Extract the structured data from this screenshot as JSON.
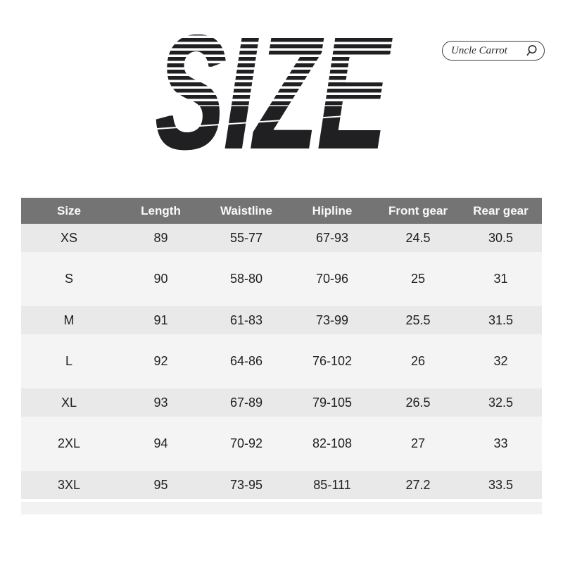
{
  "title": "SIZE",
  "brand": {
    "label": "Uncle Carrot",
    "icon": "search-icon"
  },
  "table": {
    "columns": [
      "Size",
      "Length",
      "Waistline",
      "Hipline",
      "Front gear",
      "Rear gear"
    ],
    "rows": [
      [
        "XS",
        "89",
        "55-77",
        "67-93",
        "24.5",
        "30.5"
      ],
      [
        "S",
        "90",
        "58-80",
        "70-96",
        "25",
        "31"
      ],
      [
        "M",
        "91",
        "61-83",
        "73-99",
        "25.5",
        "31.5"
      ],
      [
        "L",
        "92",
        "64-86",
        "76-102",
        "26",
        "32"
      ],
      [
        "XL",
        "93",
        "67-89",
        "79-105",
        "26.5",
        "32.5"
      ],
      [
        "2XL",
        "94",
        "70-92",
        "82-108",
        "27",
        "33"
      ],
      [
        "3XL",
        "95",
        "73-95",
        "85-111",
        "27.2",
        "33.5"
      ]
    ]
  },
  "colors": {
    "header_bg": "#747474",
    "header_text": "#fafafa",
    "row_band_dark": "#e9e9e9",
    "row_band_light": "#f4f4f4",
    "title_text": "#202023",
    "pill_border": "#3d3d3d"
  }
}
